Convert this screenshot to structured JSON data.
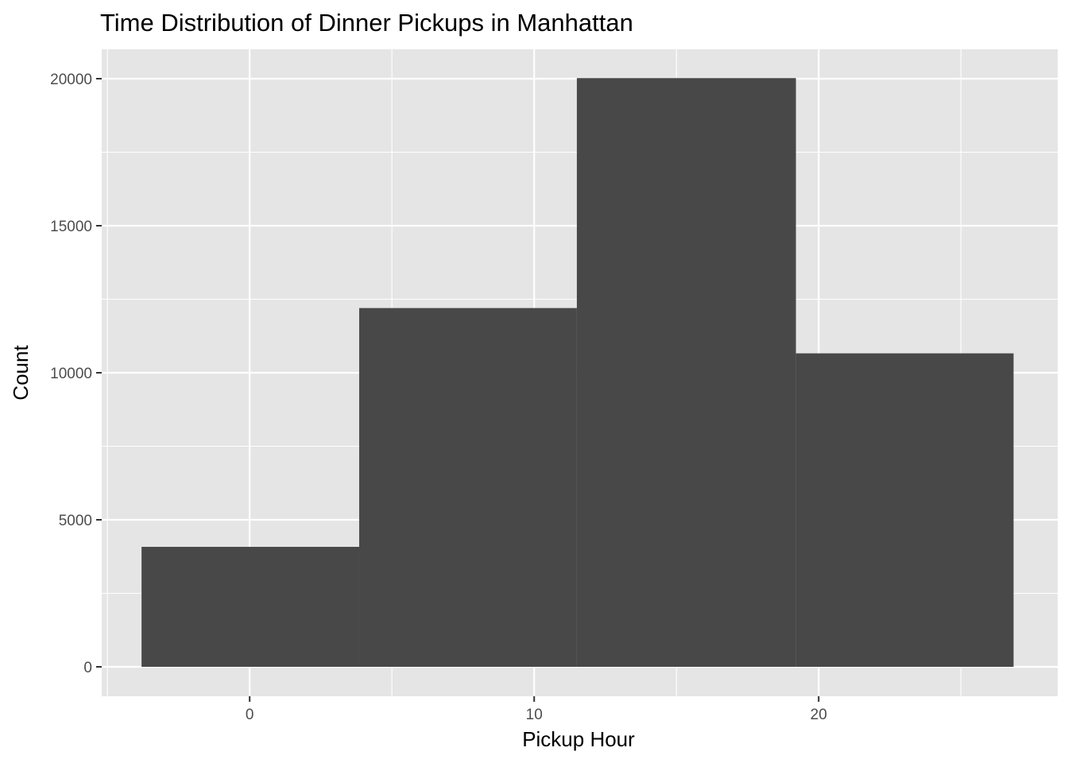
{
  "chart_data": {
    "type": "bar",
    "title": "Time Distribution of Dinner Pickups in Manhattan",
    "xlabel": "Pickup Hour",
    "ylabel": "Count",
    "xlim": [
      -5.2,
      28.4
    ],
    "ylim": [
      -1000,
      21000
    ],
    "x_ticks": [
      0,
      10,
      20
    ],
    "y_ticks": [
      0,
      5000,
      10000,
      15000,
      20000
    ],
    "x_tick_labels": [
      "0",
      "10",
      "20"
    ],
    "y_tick_labels": [
      "0",
      "5000",
      "10000",
      "15000",
      "20000"
    ],
    "bins": [
      {
        "x_start": -3.8,
        "x_end": 3.85,
        "value": 4080
      },
      {
        "x_start": 3.85,
        "x_end": 11.5,
        "value": 12200
      },
      {
        "x_start": 11.5,
        "x_end": 19.2,
        "value": 20020
      },
      {
        "x_start": 19.2,
        "x_end": 26.85,
        "value": 10660
      }
    ],
    "bar_color": "#484848",
    "panel_color": "#e5e5e5",
    "grid": true,
    "legend": "none"
  }
}
